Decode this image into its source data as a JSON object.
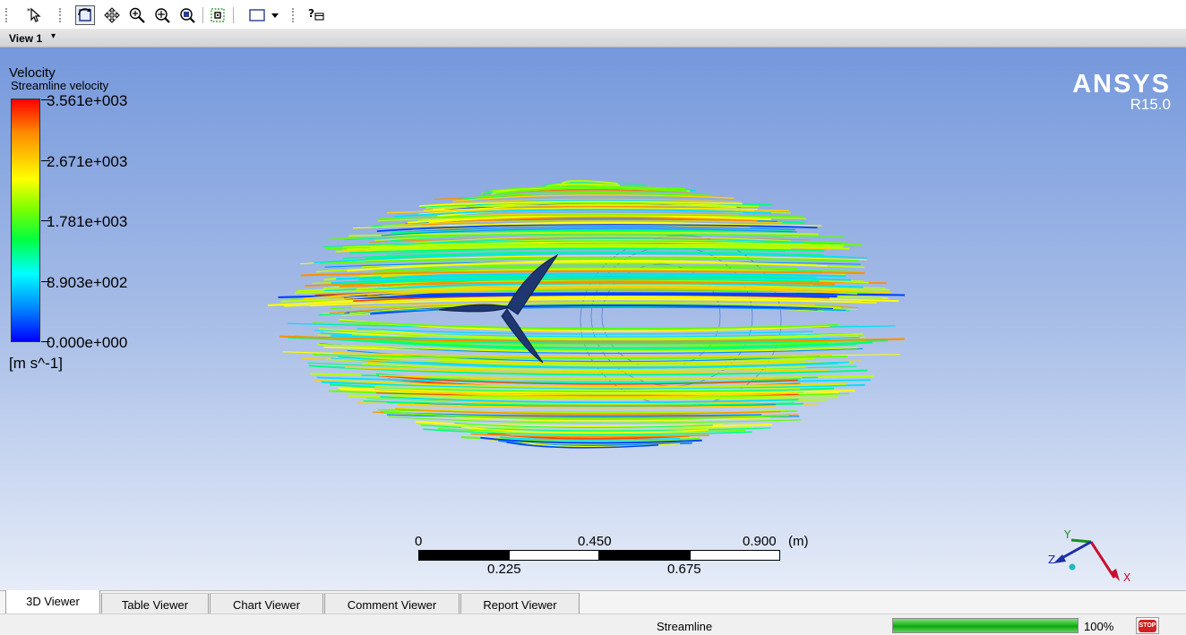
{
  "toolbar": {
    "buttons": [
      "select-icon",
      "rotate-icon",
      "pan-icon",
      "zoom-box-icon",
      "zoom-in-icon",
      "zoom-fit-icon",
      "fit-view-icon",
      "viewport-layout-icon",
      "dropdown-arrow-icon",
      "help-icon"
    ],
    "active": "rotate-icon"
  },
  "view": {
    "title": "View 1",
    "caret": "▾"
  },
  "legend": {
    "title": "Velocity",
    "subtitle": "Streamline velocity",
    "labels": [
      "3.561e+003",
      "2.671e+003",
      "1.781e+003",
      "8.903e+002",
      "0.000e+000"
    ],
    "unit": "[m s^-1]",
    "colors": [
      "#ff0000",
      "#ff8c00",
      "#ffff00",
      "#7fff00",
      "#00ff40",
      "#00ffff",
      "#0080ff",
      "#0000ff"
    ]
  },
  "brand": {
    "name": "ANSYS",
    "version": "R15.0"
  },
  "scale": {
    "labels_top": [
      "0",
      "0.450",
      "0.900"
    ],
    "unit": "(m)",
    "labels_bottom": [
      "0.225",
      "0.675"
    ]
  },
  "axes": {
    "x": "X",
    "y": "Y",
    "z": "Z",
    "colors": {
      "x": "#c8102e",
      "y": "#1a8f1a",
      "z": "#1d2ea8"
    }
  },
  "tabs": [
    {
      "label": "3D Viewer",
      "active": true
    },
    {
      "label": "Table Viewer",
      "active": false
    },
    {
      "label": "Chart Viewer",
      "active": false
    },
    {
      "label": "Comment Viewer",
      "active": false
    },
    {
      "label": "Report Viewer",
      "active": false
    }
  ],
  "status": {
    "text": "Streamline",
    "progress": 100,
    "progress_label": "100%",
    "stop_label": "STOP"
  }
}
